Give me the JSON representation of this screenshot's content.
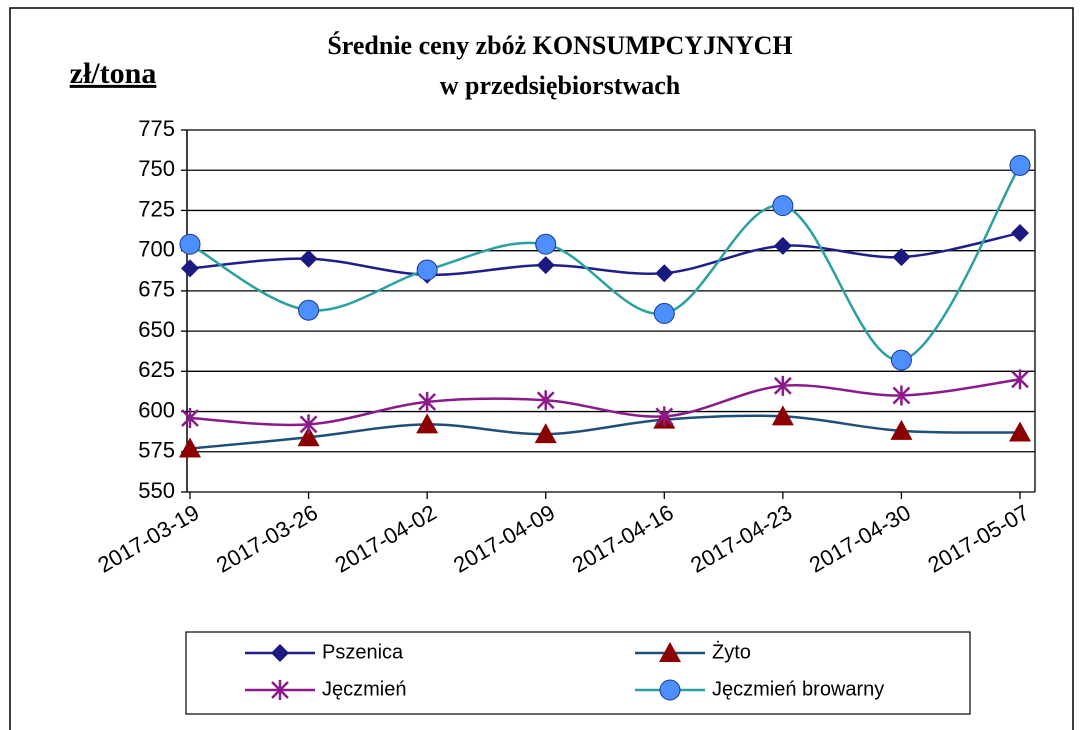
{
  "chart_data": {
    "type": "line",
    "title": "Średnie ceny zbóż KONSUMPCYJNYCH",
    "subtitle": "w przedsiębiorstwach",
    "y_label": "zł/tona",
    "categories": [
      "2017-03-19",
      "2017-03-26",
      "2017-04-02",
      "2017-04-09",
      "2017-04-16",
      "2017-04-23",
      "2017-04-30",
      "2017-05-07"
    ],
    "series": [
      {
        "name": "Pszenica",
        "color": "#1f1f8c",
        "marker_color": "#1a1a80",
        "marker": "diamond",
        "values": [
          689,
          695,
          685,
          691,
          686,
          703,
          696,
          711
        ]
      },
      {
        "name": "Żyto",
        "color": "#1f4e79",
        "marker_color": "#8b0000",
        "marker": "triangle",
        "values": [
          577,
          584,
          592,
          586,
          595,
          597,
          588,
          587
        ]
      },
      {
        "name": "Jęczmień",
        "color": "#8b1a8b",
        "marker_color": "#8b1a8b",
        "marker": "star",
        "values": [
          596,
          592,
          606,
          607,
          597,
          616,
          610,
          620
        ]
      },
      {
        "name": "Jęczmień browarny",
        "color": "#2aa0a0",
        "marker_color": "#4d8fff",
        "marker": "circle",
        "values": [
          704,
          663,
          688,
          704,
          661,
          728,
          632,
          753
        ]
      }
    ],
    "ylim": [
      550,
      775
    ],
    "yticks": [
      550,
      575,
      600,
      625,
      650,
      675,
      700,
      725,
      750,
      775
    ],
    "grid": true,
    "smooth": true
  }
}
